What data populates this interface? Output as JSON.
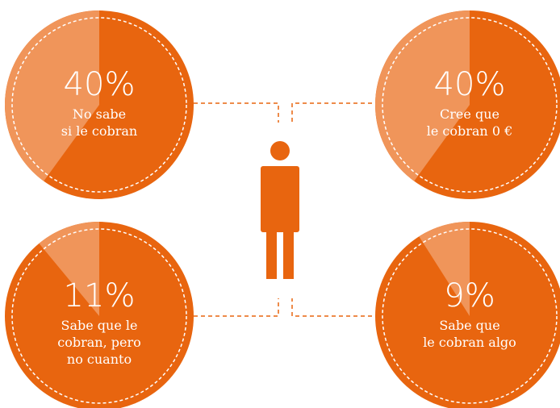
{
  "chart_data": {
    "type": "pie",
    "categories": [
      [
        "No sabe",
        "si le cobran"
      ],
      [
        "Cree que",
        "le cobran 0 €"
      ],
      [
        "Sabe que le",
        "cobran, pero",
        "no cuanto"
      ],
      [
        "Sabe que",
        "le cobran algo"
      ]
    ],
    "values": [
      40,
      40,
      11,
      9
    ],
    "value_labels": [
      "40%",
      "40%",
      "11%",
      "9%"
    ],
    "color": "#e8650f",
    "highlight_color": "#f0955a"
  }
}
